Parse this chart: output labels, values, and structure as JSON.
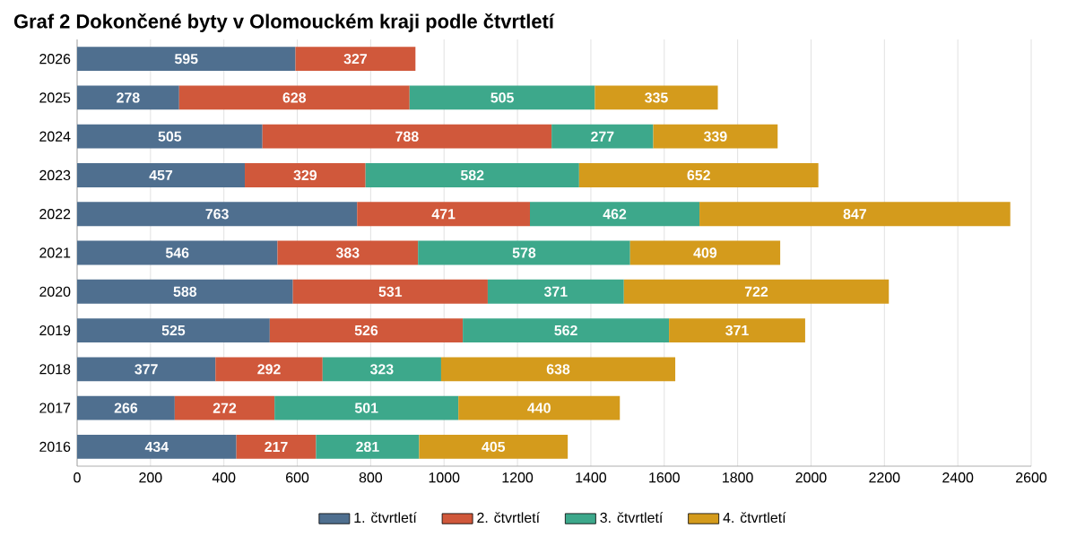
{
  "chart_data": {
    "type": "bar",
    "orientation": "horizontal",
    "stacked": true,
    "title": "Graf 2 Dokončené byty v Olomouckém kraji podle čtvrtletí",
    "categories": [
      "2026",
      "2025",
      "2024",
      "2023",
      "2022",
      "2021",
      "2020",
      "2019",
      "2018",
      "2017",
      "2016"
    ],
    "series": [
      {
        "name": "1. čtvrtletí",
        "color": "#4f6f8f",
        "values": [
          595,
          278,
          505,
          457,
          763,
          546,
          588,
          525,
          377,
          266,
          434
        ]
      },
      {
        "name": "2. čtvrtletí",
        "color": "#d0583b",
        "values": [
          327,
          628,
          788,
          329,
          471,
          383,
          531,
          526,
          292,
          272,
          217
        ]
      },
      {
        "name": "3. čtvrtletí",
        "color": "#3da88b",
        "values": [
          null,
          505,
          277,
          582,
          462,
          578,
          371,
          562,
          323,
          501,
          281
        ]
      },
      {
        "name": "4. čtvrtletí",
        "color": "#d49b1c",
        "values": [
          null,
          335,
          339,
          652,
          847,
          409,
          722,
          371,
          638,
          440,
          405
        ]
      }
    ],
    "xlim": [
      0,
      2600
    ],
    "xticks": [
      0,
      200,
      400,
      600,
      800,
      1000,
      1200,
      1400,
      1600,
      1800,
      2000,
      2200,
      2400,
      2600
    ],
    "grid": "x",
    "legend": "bottom",
    "data_labels": true
  }
}
